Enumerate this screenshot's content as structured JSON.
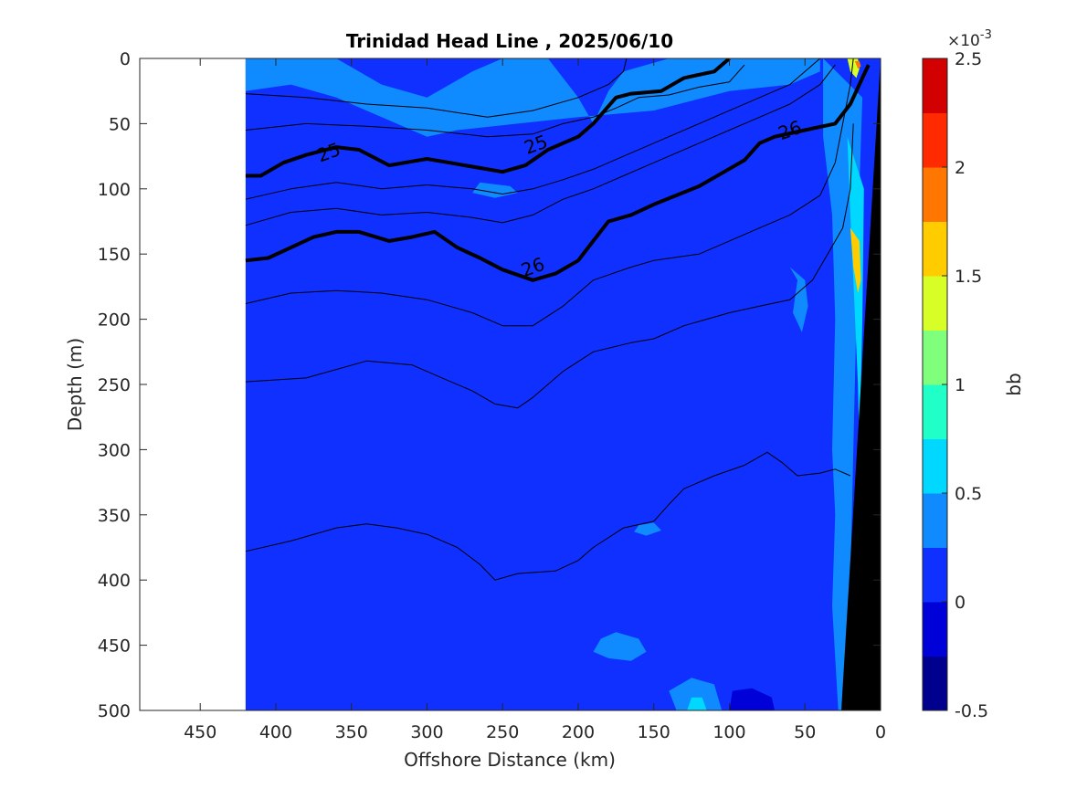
{
  "chart_data": {
    "type": "heatmap",
    "title": "Trinidad Head Line , 2025/06/10",
    "xlabel": "Offshore Distance (km)",
    "ylabel": "Depth (m)",
    "xlim": [
      490,
      0
    ],
    "x_reversed": true,
    "ylim": [
      0,
      500
    ],
    "y_reversed": true,
    "x_ticks": [
      450,
      400,
      350,
      300,
      250,
      200,
      150,
      100,
      50,
      0
    ],
    "y_ticks": [
      0,
      50,
      100,
      150,
      200,
      250,
      300,
      350,
      400,
      450,
      500
    ],
    "data_x_range": [
      420,
      0
    ],
    "colorbar": {
      "label": "bb",
      "exponent_label": "×10",
      "exponent_power": "-3",
      "min": -0.5,
      "max": 2.5,
      "levels": 12,
      "ticks": [
        -0.5,
        0,
        0.5,
        1,
        1.5,
        2,
        2.5
      ],
      "tick_labels": [
        "-0.5",
        "0",
        "0.5",
        "1",
        "1.5",
        "2",
        "2.5"
      ],
      "colors": [
        "#00008f",
        "#0000d9",
        "#0f30ff",
        "#0f8bff",
        "#00d8ff",
        "#21ffc8",
        "#80ff7d",
        "#d7ff27",
        "#ffcc00",
        "#ff7700",
        "#ff2a00",
        "#d20000"
      ]
    },
    "background_value": 0.1,
    "features": [
      {
        "desc": "near-surface higher bb",
        "value": 0.4,
        "points": [
          [
            420,
            0
          ],
          [
            360,
            0
          ],
          [
            330,
            20
          ],
          [
            300,
            30
          ],
          [
            270,
            10
          ],
          [
            250,
            0
          ],
          [
            220,
            0
          ],
          [
            200,
            30
          ],
          [
            190,
            50
          ],
          [
            180,
            25
          ],
          [
            170,
            10
          ],
          [
            140,
            0
          ],
          [
            100,
            0
          ],
          [
            60,
            0
          ],
          [
            40,
            0
          ],
          [
            40,
            10
          ],
          [
            60,
            20
          ],
          [
            100,
            25
          ],
          [
            150,
            40
          ],
          [
            200,
            45
          ],
          [
            240,
            50
          ],
          [
            280,
            55
          ],
          [
            300,
            60
          ],
          [
            330,
            45
          ],
          [
            360,
            30
          ],
          [
            390,
            20
          ],
          [
            420,
            25
          ]
        ]
      },
      {
        "desc": "subsurface patch",
        "value": 0.4,
        "points": [
          [
            265,
            95
          ],
          [
            245,
            98
          ],
          [
            240,
            103
          ],
          [
            255,
            107
          ],
          [
            270,
            103
          ]
        ]
      },
      {
        "desc": "subsurface patch 2",
        "value": 0.4,
        "points": [
          [
            60,
            160
          ],
          [
            55,
            170
          ],
          [
            58,
            195
          ],
          [
            52,
            210
          ],
          [
            48,
            190
          ],
          [
            50,
            170
          ]
        ]
      },
      {
        "desc": "mid-depth patch",
        "value": 0.4,
        "points": [
          [
            160,
            358
          ],
          [
            150,
            356
          ],
          [
            145,
            362
          ],
          [
            155,
            366
          ],
          [
            163,
            363
          ]
        ]
      },
      {
        "desc": "deep patch",
        "value": 0.4,
        "points": [
          [
            185,
            445
          ],
          [
            175,
            440
          ],
          [
            160,
            445
          ],
          [
            155,
            455
          ],
          [
            165,
            462
          ],
          [
            180,
            460
          ],
          [
            190,
            455
          ]
        ]
      },
      {
        "desc": "bottom patch light",
        "value": 0.4,
        "points": [
          [
            135,
            500
          ],
          [
            140,
            485
          ],
          [
            125,
            475
          ],
          [
            110,
            480
          ],
          [
            105,
            500
          ]
        ]
      },
      {
        "desc": "bottom patch cyan",
        "value": 0.7,
        "points": [
          [
            128,
            500
          ],
          [
            125,
            490
          ],
          [
            118,
            490
          ],
          [
            115,
            500
          ]
        ]
      },
      {
        "desc": "bottom patch dark",
        "value": -0.15,
        "points": [
          [
            100,
            500
          ],
          [
            98,
            485
          ],
          [
            85,
            483
          ],
          [
            72,
            490
          ],
          [
            70,
            500
          ]
        ]
      },
      {
        "desc": "nearshore band",
        "value": 0.4,
        "points": [
          [
            38,
            0
          ],
          [
            38,
            60
          ],
          [
            32,
            120
          ],
          [
            30,
            200
          ],
          [
            32,
            300
          ],
          [
            30,
            350
          ],
          [
            32,
            420
          ],
          [
            28,
            500
          ],
          [
            20,
            500
          ],
          [
            20,
            400
          ],
          [
            18,
            300
          ],
          [
            14,
            100
          ],
          [
            12,
            30
          ]
        ]
      },
      {
        "desc": "nearshore band inner",
        "value": 0.7,
        "points": [
          [
            22,
            60
          ],
          [
            20,
            120
          ],
          [
            18,
            170
          ],
          [
            15,
            250
          ],
          [
            14,
            300
          ],
          [
            12,
            200
          ],
          [
            11,
            100
          ]
        ]
      },
      {
        "desc": "nearshore hotspot",
        "value": 1.5,
        "points": [
          [
            20,
            130
          ],
          [
            18,
            160
          ],
          [
            15,
            180
          ],
          [
            13,
            170
          ],
          [
            14,
            140
          ]
        ]
      },
      {
        "desc": "near-surface hotspot",
        "value": 1.4,
        "points": [
          [
            22,
            0
          ],
          [
            20,
            10
          ],
          [
            16,
            15
          ],
          [
            14,
            8
          ],
          [
            15,
            0
          ]
        ]
      },
      {
        "desc": "near-surface hotspot core",
        "value": 1.8,
        "points": [
          [
            17,
            2
          ],
          [
            15,
            8
          ],
          [
            13,
            6
          ],
          [
            14,
            2
          ]
        ]
      }
    ],
    "contours": [
      {
        "label": "",
        "bold": false,
        "points": [
          [
            420,
            27
          ],
          [
            380,
            30
          ],
          [
            340,
            35
          ],
          [
            300,
            38
          ],
          [
            260,
            45
          ],
          [
            230,
            40
          ],
          [
            200,
            30
          ],
          [
            180,
            20
          ],
          [
            170,
            10
          ],
          [
            168,
            0
          ]
        ]
      },
      {
        "label": "",
        "bold": false,
        "points": [
          [
            420,
            55
          ],
          [
            380,
            50
          ],
          [
            340,
            52
          ],
          [
            300,
            55
          ],
          [
            260,
            60
          ],
          [
            230,
            58
          ],
          [
            210,
            50
          ],
          [
            190,
            45
          ],
          [
            175,
            38
          ],
          [
            160,
            30
          ],
          [
            140,
            28
          ],
          [
            120,
            22
          ],
          [
            100,
            18
          ],
          [
            90,
            5
          ]
        ]
      },
      {
        "label": "25",
        "bold": true,
        "label_x": 365,
        "label_y": 72,
        "points": [
          [
            420,
            90
          ],
          [
            410,
            90
          ],
          [
            395,
            80
          ],
          [
            380,
            74
          ],
          [
            360,
            68
          ],
          [
            345,
            70
          ],
          [
            325,
            82
          ],
          [
            310,
            79
          ],
          [
            300,
            77
          ],
          [
            285,
            80
          ],
          [
            270,
            83
          ],
          [
            250,
            87
          ],
          [
            235,
            82
          ],
          [
            220,
            70
          ],
          [
            210,
            65
          ],
          [
            200,
            60
          ],
          [
            190,
            50
          ],
          [
            175,
            30
          ],
          [
            165,
            27
          ],
          [
            145,
            25
          ],
          [
            130,
            15
          ],
          [
            110,
            10
          ],
          [
            100,
            0
          ]
        ]
      },
      {
        "label": "",
        "bold": false,
        "points": [
          [
            420,
            108
          ],
          [
            390,
            100
          ],
          [
            360,
            95
          ],
          [
            330,
            100
          ],
          [
            300,
            97
          ],
          [
            270,
            100
          ],
          [
            250,
            104
          ],
          [
            230,
            100
          ],
          [
            210,
            93
          ],
          [
            190,
            85
          ],
          [
            170,
            75
          ],
          [
            150,
            65
          ],
          [
            120,
            50
          ],
          [
            100,
            40
          ],
          [
            80,
            30
          ],
          [
            60,
            20
          ],
          [
            45,
            5
          ],
          [
            40,
            0
          ]
        ]
      },
      {
        "label": "",
        "bold": false,
        "points": [
          [
            420,
            128
          ],
          [
            390,
            118
          ],
          [
            360,
            115
          ],
          [
            330,
            120
          ],
          [
            300,
            118
          ],
          [
            270,
            122
          ],
          [
            250,
            126
          ],
          [
            230,
            120
          ],
          [
            210,
            108
          ],
          [
            190,
            100
          ],
          [
            170,
            90
          ],
          [
            150,
            80
          ],
          [
            120,
            65
          ],
          [
            100,
            55
          ],
          [
            80,
            45
          ],
          [
            60,
            35
          ],
          [
            40,
            20
          ],
          [
            30,
            5
          ]
        ]
      },
      {
        "label": "26",
        "bold": true,
        "label_x": 230,
        "label_y": 160,
        "points": [
          [
            420,
            155
          ],
          [
            405,
            153
          ],
          [
            390,
            145
          ],
          [
            375,
            137
          ],
          [
            360,
            133
          ],
          [
            345,
            133
          ],
          [
            325,
            140
          ],
          [
            310,
            137
          ],
          [
            295,
            133
          ],
          [
            280,
            145
          ],
          [
            265,
            153
          ],
          [
            250,
            162
          ],
          [
            230,
            170
          ],
          [
            215,
            165
          ],
          [
            200,
            155
          ],
          [
            190,
            140
          ],
          [
            180,
            125
          ],
          [
            165,
            120
          ],
          [
            150,
            112
          ],
          [
            135,
            105
          ],
          [
            120,
            98
          ],
          [
            105,
            88
          ],
          [
            90,
            78
          ],
          [
            80,
            65
          ],
          [
            70,
            60
          ],
          [
            50,
            55
          ],
          [
            30,
            50
          ],
          [
            20,
            35
          ],
          [
            12,
            15
          ],
          [
            8,
            5
          ]
        ]
      },
      {
        "label": "",
        "bold": false,
        "points": [
          [
            420,
            188
          ],
          [
            390,
            180
          ],
          [
            360,
            178
          ],
          [
            330,
            180
          ],
          [
            300,
            185
          ],
          [
            270,
            195
          ],
          [
            250,
            205
          ],
          [
            230,
            205
          ],
          [
            210,
            190
          ],
          [
            190,
            170
          ],
          [
            165,
            160
          ],
          [
            150,
            155
          ],
          [
            120,
            150
          ],
          [
            100,
            140
          ],
          [
            80,
            130
          ],
          [
            60,
            120
          ],
          [
            40,
            105
          ],
          [
            30,
            80
          ],
          [
            25,
            50
          ],
          [
            20,
            20
          ],
          [
            18,
            0
          ]
        ]
      },
      {
        "label": "",
        "bold": false,
        "points": [
          [
            420,
            248
          ],
          [
            380,
            245
          ],
          [
            340,
            232
          ],
          [
            310,
            235
          ],
          [
            290,
            245
          ],
          [
            270,
            255
          ],
          [
            255,
            265
          ],
          [
            240,
            268
          ],
          [
            230,
            260
          ],
          [
            210,
            240
          ],
          [
            190,
            225
          ],
          [
            165,
            218
          ],
          [
            150,
            215
          ],
          [
            130,
            205
          ],
          [
            100,
            195
          ],
          [
            80,
            190
          ],
          [
            60,
            185
          ],
          [
            45,
            170
          ],
          [
            35,
            150
          ],
          [
            25,
            130
          ],
          [
            20,
            100
          ],
          [
            18,
            50
          ]
        ]
      },
      {
        "label": "",
        "bold": false,
        "points": [
          [
            420,
            378
          ],
          [
            390,
            370
          ],
          [
            360,
            360
          ],
          [
            340,
            357
          ],
          [
            320,
            360
          ],
          [
            300,
            365
          ],
          [
            280,
            375
          ],
          [
            265,
            388
          ],
          [
            255,
            400
          ],
          [
            240,
            395
          ],
          [
            215,
            393
          ],
          [
            200,
            385
          ],
          [
            190,
            375
          ],
          [
            170,
            360
          ],
          [
            150,
            355
          ],
          [
            140,
            342
          ],
          [
            130,
            330
          ],
          [
            110,
            320
          ],
          [
            90,
            312
          ],
          [
            75,
            302
          ],
          [
            65,
            310
          ],
          [
            55,
            320
          ],
          [
            40,
            318
          ],
          [
            30,
            315
          ],
          [
            20,
            320
          ]
        ]
      }
    ]
  }
}
